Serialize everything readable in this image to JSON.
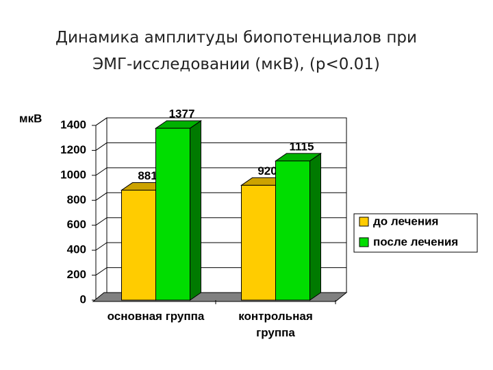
{
  "chart_data": {
    "type": "bar3d",
    "title": [
      "Динамика амплитуды биопотенциалов при",
      "ЭМГ-исследовании (мкВ), (p<0.01)"
    ],
    "y_label": "мкВ",
    "categories": [
      "основная группа",
      "контрольная группа"
    ],
    "series": [
      {
        "name": "до лечения",
        "color": "#ffcc00",
        "values": [
          881,
          920
        ]
      },
      {
        "name": "после лечения",
        "color": "#00dd00",
        "values": [
          1377,
          1115
        ]
      }
    ],
    "ylim": [
      0,
      1400
    ],
    "yticks": [
      0,
      200,
      400,
      600,
      800,
      1000,
      1200,
      1400
    ],
    "grid": true,
    "legend": "right"
  }
}
